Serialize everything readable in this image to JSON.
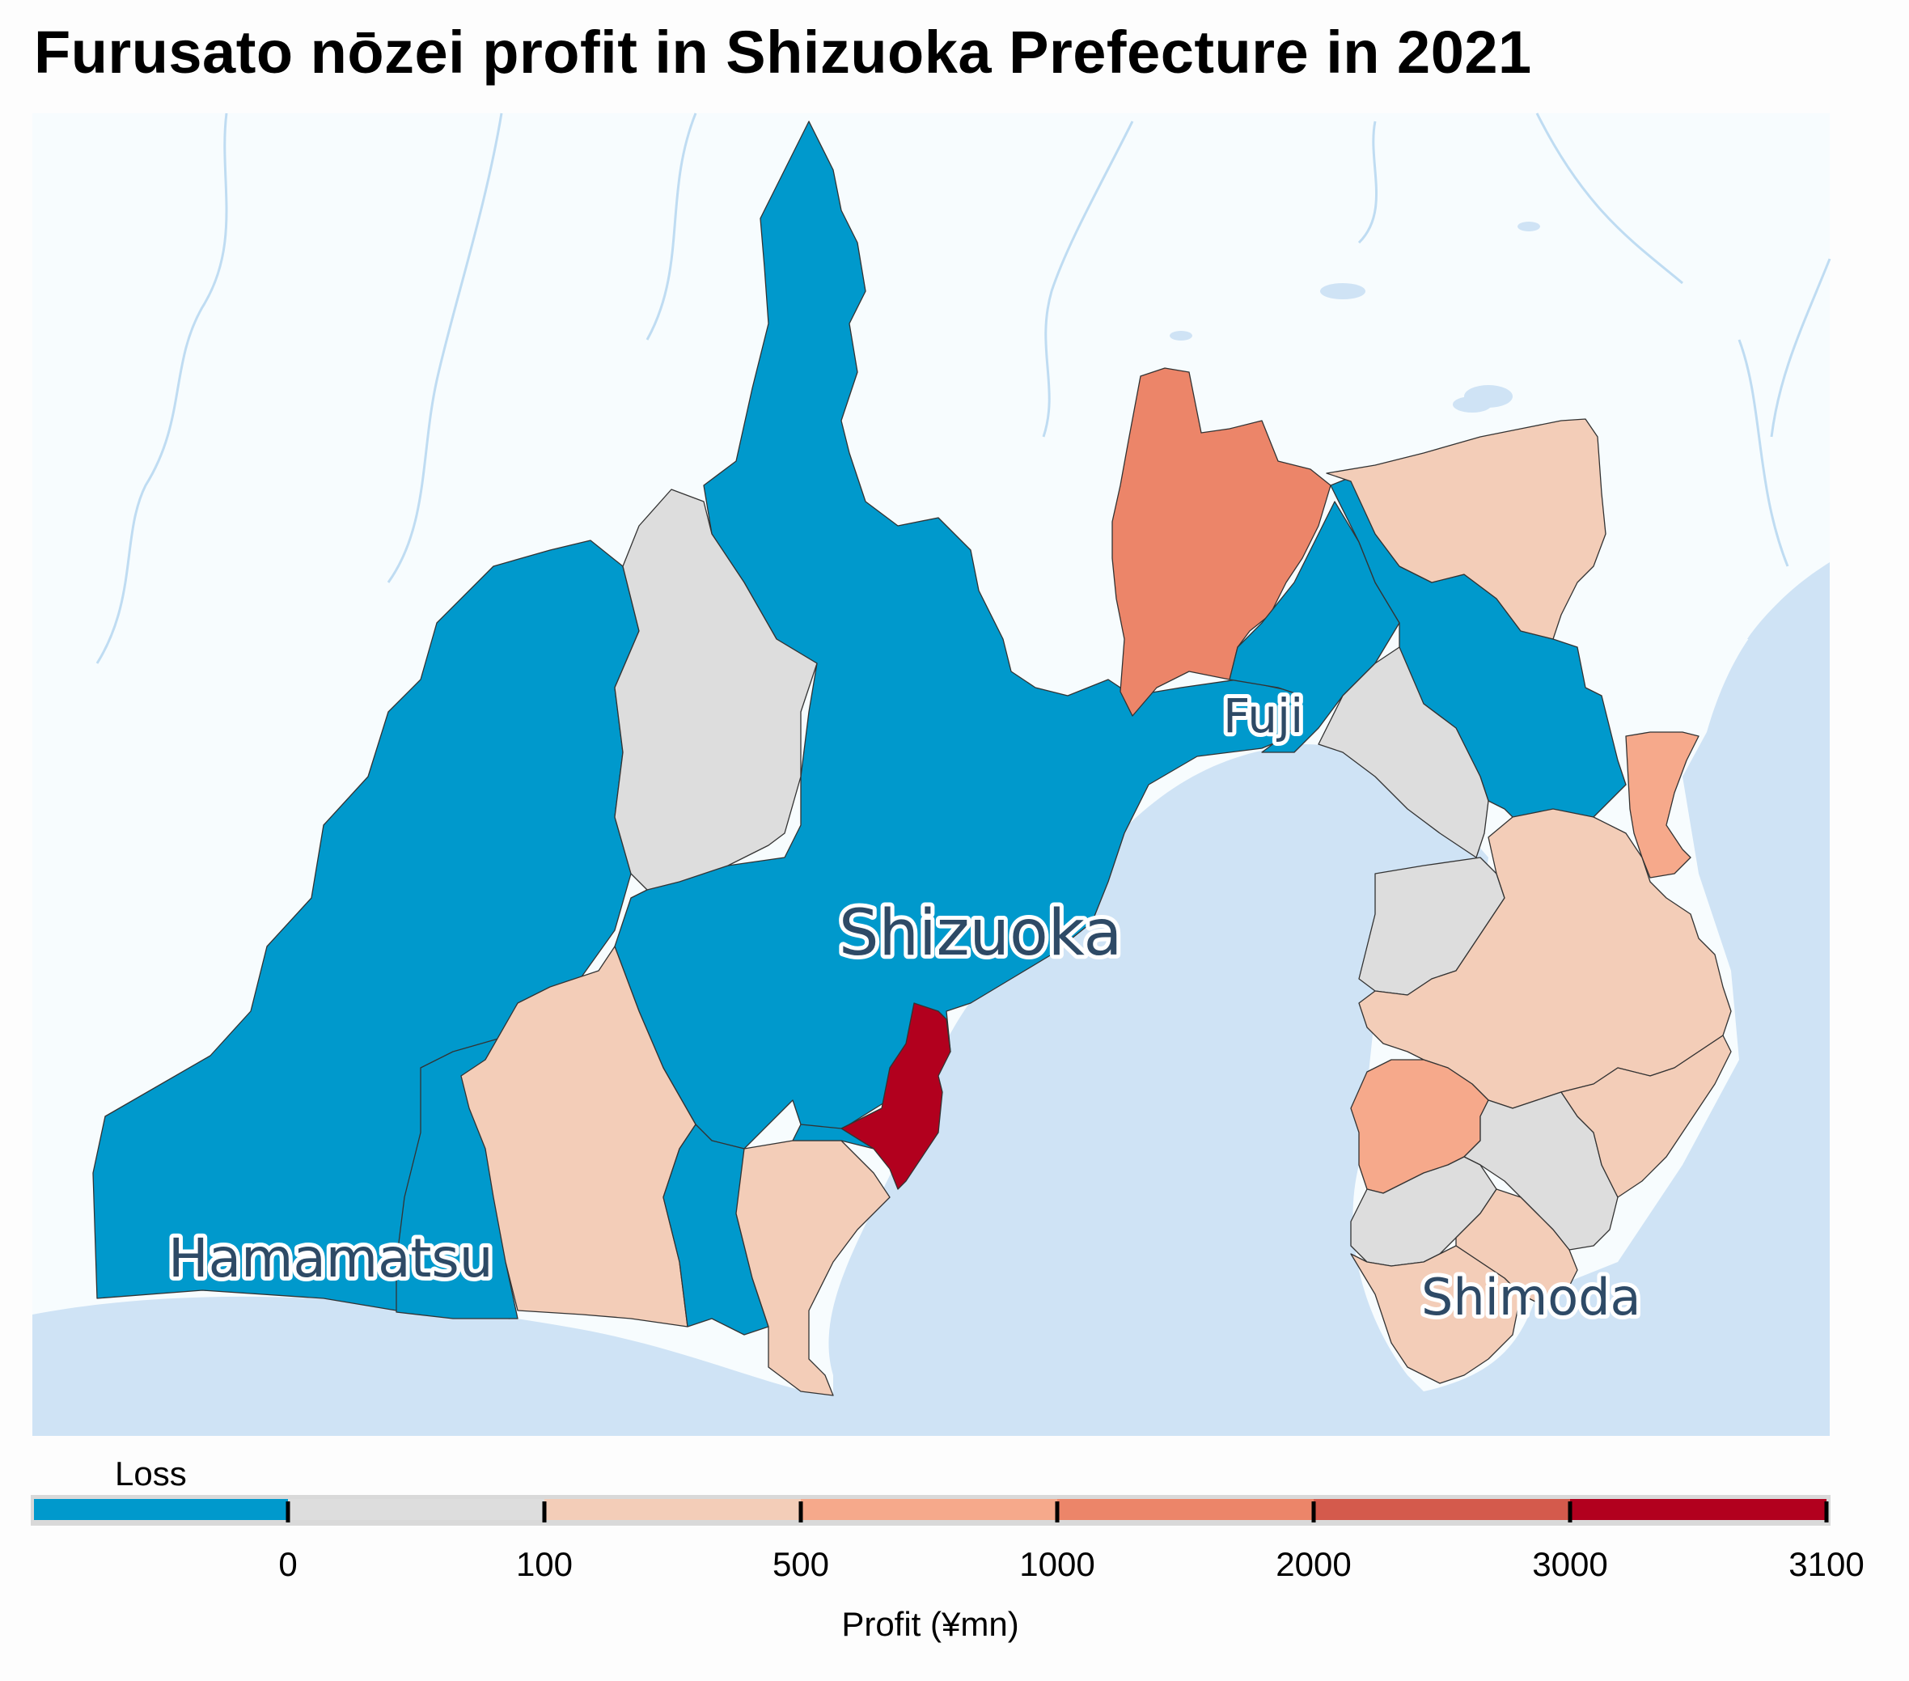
{
  "title": "Furusato nōzei profit in Shizuoka Prefecture in 2021",
  "colors": {
    "loss": "#0099cc",
    "bin_0_100": "#dddddd",
    "bin_100_500": "#f3cdb8",
    "bin_500_1000": "#f6a98b",
    "bin_1000_2000": "#ec8569",
    "bin_2000_3000": "#d45a4c",
    "bin_3000_3100": "#b2001e",
    "sea": "#cfe3f5",
    "land_bg": "#f7fcfe",
    "rivers": "#bfdcf2"
  },
  "cities": {
    "fuji": "Fuji",
    "shizuoka": "Shizuoka",
    "hamamatsu": "Hamamatsu",
    "shimoda": "Shimoda"
  },
  "legend": {
    "loss_label": "Loss",
    "title": "Profit (¥mn)",
    "ticks": [
      "0",
      "100",
      "500",
      "1000",
      "2000",
      "3000",
      "3100"
    ]
  },
  "chart_data": {
    "type": "choropleth",
    "title": "Furusato nōzei profit in Shizuoka Prefecture in 2021",
    "colorbar_label": "Profit (¥mn)",
    "bins": [
      {
        "range": "Loss",
        "color": "#0099cc"
      },
      {
        "range": [
          0,
          100
        ],
        "color": "#dddddd"
      },
      {
        "range": [
          100,
          500
        ],
        "color": "#f3cdb8"
      },
      {
        "range": [
          500,
          1000
        ],
        "color": "#f6a98b"
      },
      {
        "range": [
          1000,
          2000
        ],
        "color": "#ec8569"
      },
      {
        "range": [
          2000,
          3000
        ],
        "color": "#d45a4c"
      },
      {
        "range": [
          3000,
          3100
        ],
        "color": "#b2001e"
      }
    ],
    "labeled_cities": [
      "Fuji",
      "Shizuoka",
      "Hamamatsu",
      "Shimoda"
    ]
  }
}
